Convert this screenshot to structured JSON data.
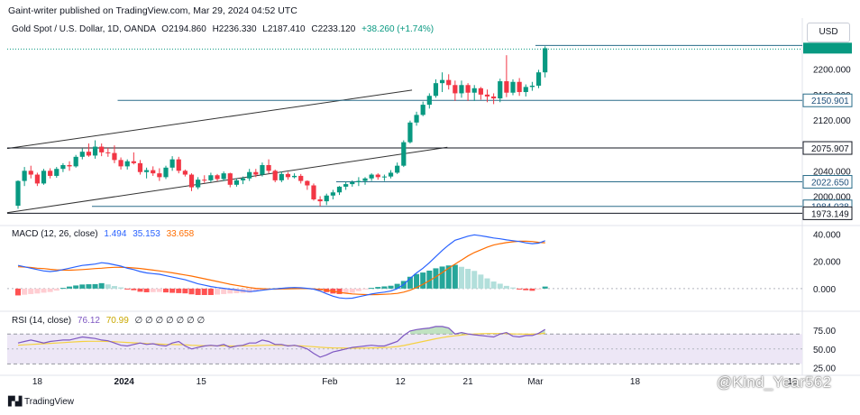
{
  "header": {
    "published_by": "Gaint-writer published on TradingView.com, Mar 29, 2024 04:52 UTC"
  },
  "legend": {
    "symbol": "Gold Spot / U.S. Dollar, 1D, OANDA",
    "open": "O2194.860",
    "high": "H2236.330",
    "low": "L2187.410",
    "close": "C2233.120",
    "change": "+38.260 (+1.74%)"
  },
  "currency_button": "USD",
  "macd": {
    "label": "MACD (12, 26, close)",
    "hist": "1.494",
    "macd": "35.153",
    "signal": "33.658"
  },
  "rsi": {
    "label": "RSI (14, close)",
    "rsi": "76.12",
    "ma": "70.99",
    "extra": "∅ ∅ ∅ ∅ ∅ ∅ ∅"
  },
  "branding": {
    "logo_text": "TradingView",
    "watermark": "@Kind_Year562"
  },
  "colors": {
    "up": "#089981",
    "down": "#f23645",
    "macd_line": "#2962ff",
    "signal_line": "#ff6d00",
    "rsi_line": "#7e57c2",
    "rsi_ma": "#f5d142",
    "level_line": "#2a6d8a",
    "band": "#ede7f6"
  },
  "chart_data": {
    "type": "candlestick",
    "title": "Gold Spot / U.S. Dollar, 1D, OANDA",
    "x_tick_labels": [
      "18",
      "2024",
      "15",
      "Feb",
      "12",
      "21",
      "Mar",
      "18",
      "10"
    ],
    "price_axis": {
      "ticks": [
        2200,
        2160,
        2120,
        2040,
        2000
      ],
      "tick_labels": [
        "2200.000",
        "2160.000",
        "2120.000",
        "2040.000",
        "2000.000"
      ],
      "range": [
        1968,
        2245
      ]
    },
    "level_labels": [
      "2150.901",
      "2075.907",
      "2022.650",
      "1984.038",
      "1973.149"
    ],
    "levels": [
      2150.901,
      2075.907,
      2022.65,
      1984.038,
      1973.149,
      2233.12
    ],
    "candles": [
      [
        1985,
        2025,
        1980,
        2024
      ],
      [
        2024,
        2046,
        2016,
        2040
      ],
      [
        2040,
        2048,
        2028,
        2034
      ],
      [
        2034,
        2037,
        2016,
        2020
      ],
      [
        2020,
        2043,
        2018,
        2040
      ],
      [
        2040,
        2044,
        2028,
        2032
      ],
      [
        2032,
        2046,
        2029,
        2043
      ],
      [
        2043,
        2052,
        2038,
        2049
      ],
      [
        2049,
        2055,
        2040,
        2047
      ],
      [
        2047,
        2065,
        2045,
        2062
      ],
      [
        2062,
        2075,
        2058,
        2070
      ],
      [
        2070,
        2083,
        2062,
        2064
      ],
      [
        2064,
        2088,
        2059,
        2078
      ],
      [
        2078,
        2083,
        2063,
        2069
      ],
      [
        2069,
        2076,
        2062,
        2068
      ],
      [
        2068,
        2080,
        2052,
        2057
      ],
      [
        2057,
        2061,
        2042,
        2047
      ],
      [
        2047,
        2058,
        2042,
        2055
      ],
      [
        2055,
        2069,
        2050,
        2052
      ],
      [
        2052,
        2057,
        2034,
        2038
      ],
      [
        2038,
        2045,
        2028,
        2041
      ],
      [
        2041,
        2047,
        2032,
        2036
      ],
      [
        2036,
        2044,
        2024,
        2030
      ],
      [
        2030,
        2048,
        2027,
        2045
      ],
      [
        2045,
        2063,
        2040,
        2058
      ],
      [
        2058,
        2062,
        2036,
        2040
      ],
      [
        2040,
        2042,
        2031,
        2034
      ],
      [
        2034,
        2036,
        2008,
        2014
      ],
      [
        2014,
        2030,
        2011,
        2026
      ],
      [
        2026,
        2033,
        2021,
        2025
      ],
      [
        2025,
        2037,
        2022,
        2033
      ],
      [
        2033,
        2035,
        2024,
        2027
      ],
      [
        2027,
        2039,
        2024,
        2036
      ],
      [
        2036,
        2037,
        2014,
        2018
      ],
      [
        2018,
        2028,
        2015,
        2025
      ],
      [
        2025,
        2031,
        2019,
        2028
      ],
      [
        2028,
        2043,
        2024,
        2038
      ],
      [
        2038,
        2043,
        2030,
        2034
      ],
      [
        2034,
        2053,
        2031,
        2049
      ],
      [
        2049,
        2058,
        2036,
        2040
      ],
      [
        2040,
        2042,
        2022,
        2025
      ],
      [
        2025,
        2039,
        2022,
        2035
      ],
      [
        2035,
        2038,
        2026,
        2030
      ],
      [
        2030,
        2036,
        2028,
        2032
      ],
      [
        2032,
        2035,
        2020,
        2024
      ],
      [
        2024,
        2025,
        2010,
        2017
      ],
      [
        2017,
        2020,
        1993,
        1995
      ],
      [
        1995,
        2000,
        1984,
        1992
      ],
      [
        1992,
        2004,
        1986,
        2001
      ],
      [
        2001,
        2010,
        1995,
        2006
      ],
      [
        2006,
        2016,
        2002,
        2015
      ],
      [
        2015,
        2023,
        2010,
        2019
      ],
      [
        2019,
        2025,
        2015,
        2022
      ],
      [
        2022,
        2030,
        2016,
        2024
      ],
      [
        2024,
        2030,
        2018,
        2028
      ],
      [
        2028,
        2036,
        2024,
        2034
      ],
      [
        2034,
        2036,
        2026,
        2030
      ],
      [
        2030,
        2034,
        2024,
        2031
      ],
      [
        2031,
        2041,
        2028,
        2037
      ],
      [
        2037,
        2053,
        2035,
        2048
      ],
      [
        2048,
        2088,
        2046,
        2085
      ],
      [
        2085,
        2119,
        2083,
        2116
      ],
      [
        2116,
        2133,
        2111,
        2128
      ],
      [
        2128,
        2149,
        2126,
        2144
      ],
      [
        2144,
        2162,
        2138,
        2158
      ],
      [
        2158,
        2184,
        2155,
        2178
      ],
      [
        2178,
        2195,
        2164,
        2183
      ],
      [
        2183,
        2192,
        2168,
        2175
      ],
      [
        2175,
        2182,
        2150,
        2162
      ],
      [
        2162,
        2182,
        2155,
        2175
      ],
      [
        2175,
        2178,
        2150,
        2163
      ],
      [
        2163,
        2175,
        2150,
        2170
      ],
      [
        2170,
        2172,
        2152,
        2160
      ],
      [
        2160,
        2168,
        2148,
        2157
      ],
      [
        2157,
        2162,
        2145,
        2154
      ],
      [
        2154,
        2185,
        2148,
        2181
      ],
      [
        2181,
        2222,
        2156,
        2163
      ],
      [
        2163,
        2184,
        2159,
        2180
      ],
      [
        2180,
        2186,
        2158,
        2164
      ],
      [
        2164,
        2176,
        2157,
        2172
      ],
      [
        2172,
        2180,
        2166,
        2174
      ],
      [
        2174,
        2199,
        2170,
        2195
      ],
      [
        2195,
        2236,
        2187,
        2233
      ]
    ],
    "macd": {
      "axis_ticks": [
        40,
        20,
        0
      ],
      "axis_labels": [
        "40.000",
        "20.000",
        "0.000"
      ],
      "range": [
        -12,
        43
      ],
      "macd_line": [
        17,
        16,
        15,
        14,
        13,
        12.5,
        13,
        14,
        15,
        16,
        17,
        17.5,
        18,
        19,
        18.5,
        17.5,
        16.5,
        15,
        14,
        12.5,
        11.5,
        11,
        10.5,
        9.5,
        8.5,
        7.5,
        6.5,
        5,
        3.5,
        2.5,
        1.5,
        0.8,
        0.2,
        -0.4,
        -1,
        -1.6,
        -2.2,
        -1.8,
        -1.2,
        -0.6,
        -0.2,
        0.2,
        0.6,
        0.8,
        0.6,
        0.2,
        -0.4,
        -1.8,
        -3.8,
        -5.6,
        -6.8,
        -7.2,
        -7,
        -6,
        -5,
        -4,
        -3.2,
        -2.6,
        -1.8,
        0,
        3,
        7.5,
        11.5,
        15,
        19,
        23.5,
        28,
        32,
        35.5,
        37,
        38.5,
        39.5,
        38.8,
        38,
        37.2,
        36.6,
        35.8,
        35.2,
        34.6,
        33.6,
        33,
        33.4,
        35.153
      ],
      "signal_line": [
        16,
        15.8,
        15.5,
        15,
        14.7,
        14.2,
        13.8,
        13.6,
        13.5,
        13.7,
        14,
        14.3,
        14.7,
        15,
        15.4,
        15.6,
        15.6,
        15.5,
        15.2,
        14.8,
        14.2,
        13.6,
        13,
        12.3,
        11.6,
        10.8,
        10,
        9.2,
        8.2,
        7.2,
        6.2,
        5.2,
        4.2,
        3.2,
        2.4,
        1.6,
        0.8,
        0.2,
        -0.1,
        -0.3,
        -0.4,
        -0.3,
        -0.2,
        -0.1,
        0,
        0,
        -0.2,
        -0.6,
        -1.2,
        -2,
        -2.8,
        -3.4,
        -3.9,
        -4.2,
        -4.4,
        -4.5,
        -4.4,
        -4.2,
        -3.9,
        -3.5,
        -2.6,
        -1.2,
        0.8,
        3.2,
        5.8,
        8.6,
        11.8,
        15,
        18,
        21,
        24,
        26.5,
        28.5,
        30.5,
        32,
        33,
        33.8,
        34.4,
        34.8,
        34.8,
        34.6,
        34,
        33.658
      ],
      "histogram": [
        -5,
        -4.5,
        -4,
        -3.6,
        -3,
        -2.5,
        -1.5,
        0.5,
        1.5,
        2.3,
        3,
        3.2,
        3.3,
        4,
        3.1,
        1.9,
        0.9,
        -0.5,
        -1.2,
        -2.3,
        -2.7,
        -2.6,
        -2.5,
        -2.8,
        -3.1,
        -3.3,
        -3.5,
        -4.2,
        -4.7,
        -4.7,
        -4.7,
        -4.4,
        -4,
        -3.6,
        -3.4,
        -3.2,
        -3,
        -2,
        -1.1,
        -0.3,
        0.2,
        0.5,
        0.8,
        0.9,
        0.6,
        0.2,
        -0.2,
        -1.2,
        -2.6,
        -3.6,
        -4,
        -3.8,
        -3.1,
        -1.8,
        -0.6,
        0.5,
        1.2,
        1.6,
        2.1,
        3.5,
        5.6,
        8.7,
        10.7,
        11.8,
        13.2,
        14.9,
        16.2,
        17,
        17.5,
        16,
        14.5,
        13,
        10.3,
        7.5,
        5.2,
        3.6,
        2,
        0.8,
        -0.2,
        -1.2,
        -1.6,
        -0.6,
        1.494
      ]
    },
    "rsi": {
      "axis_ticks": [
        75,
        50,
        25
      ],
      "axis_labels": [
        "75.00",
        "50.00",
        "25.00"
      ],
      "range": [
        22,
        92
      ],
      "band": [
        30,
        70
      ],
      "rsi_line": [
        58,
        60,
        62,
        60,
        58,
        60,
        61,
        62,
        62,
        64,
        66,
        65,
        64,
        62,
        61,
        58,
        55,
        54,
        56,
        58,
        56,
        57,
        55,
        54,
        58,
        60,
        54,
        50,
        52,
        54,
        55,
        54,
        56,
        52,
        54,
        55,
        58,
        58,
        62,
        60,
        56,
        56,
        54,
        55,
        53,
        50,
        44,
        39,
        42,
        46,
        48,
        50,
        52,
        53,
        54,
        55,
        54,
        54,
        57,
        60,
        68,
        74,
        76,
        77,
        78,
        80,
        80,
        78,
        70,
        72,
        70,
        69,
        68,
        67,
        66,
        70,
        72,
        67,
        66,
        68,
        68,
        71,
        76.12
      ],
      "rsi_ma": [
        55,
        55.5,
        56,
        56.5,
        57,
        57.5,
        58,
        58.5,
        59,
        59.5,
        60,
        60.2,
        60.3,
        60.3,
        60,
        59.7,
        59.2,
        58.7,
        58.2,
        57.8,
        57.3,
        56.9,
        56.5,
        56.2,
        56,
        55.8,
        55.5,
        55,
        54.6,
        54.4,
        54.3,
        54.2,
        54.1,
        54,
        54,
        54.1,
        54.3,
        54.5,
        54.8,
        55,
        55,
        54.8,
        54.6,
        54.4,
        54.1,
        53.6,
        53,
        52.3,
        51.8,
        51.5,
        51.3,
        51.2,
        51.1,
        51.1,
        51.2,
        51.4,
        51.6,
        51.9,
        52.4,
        53.2,
        54.6,
        56.4,
        58.2,
        60,
        61.8,
        63.6,
        65.2,
        66.6,
        67.6,
        68.6,
        69.4,
        70,
        70.4,
        70.6,
        70.6,
        70.6,
        70.5,
        70.2,
        70,
        69.8,
        69.8,
        70.2,
        70.99
      ]
    }
  }
}
